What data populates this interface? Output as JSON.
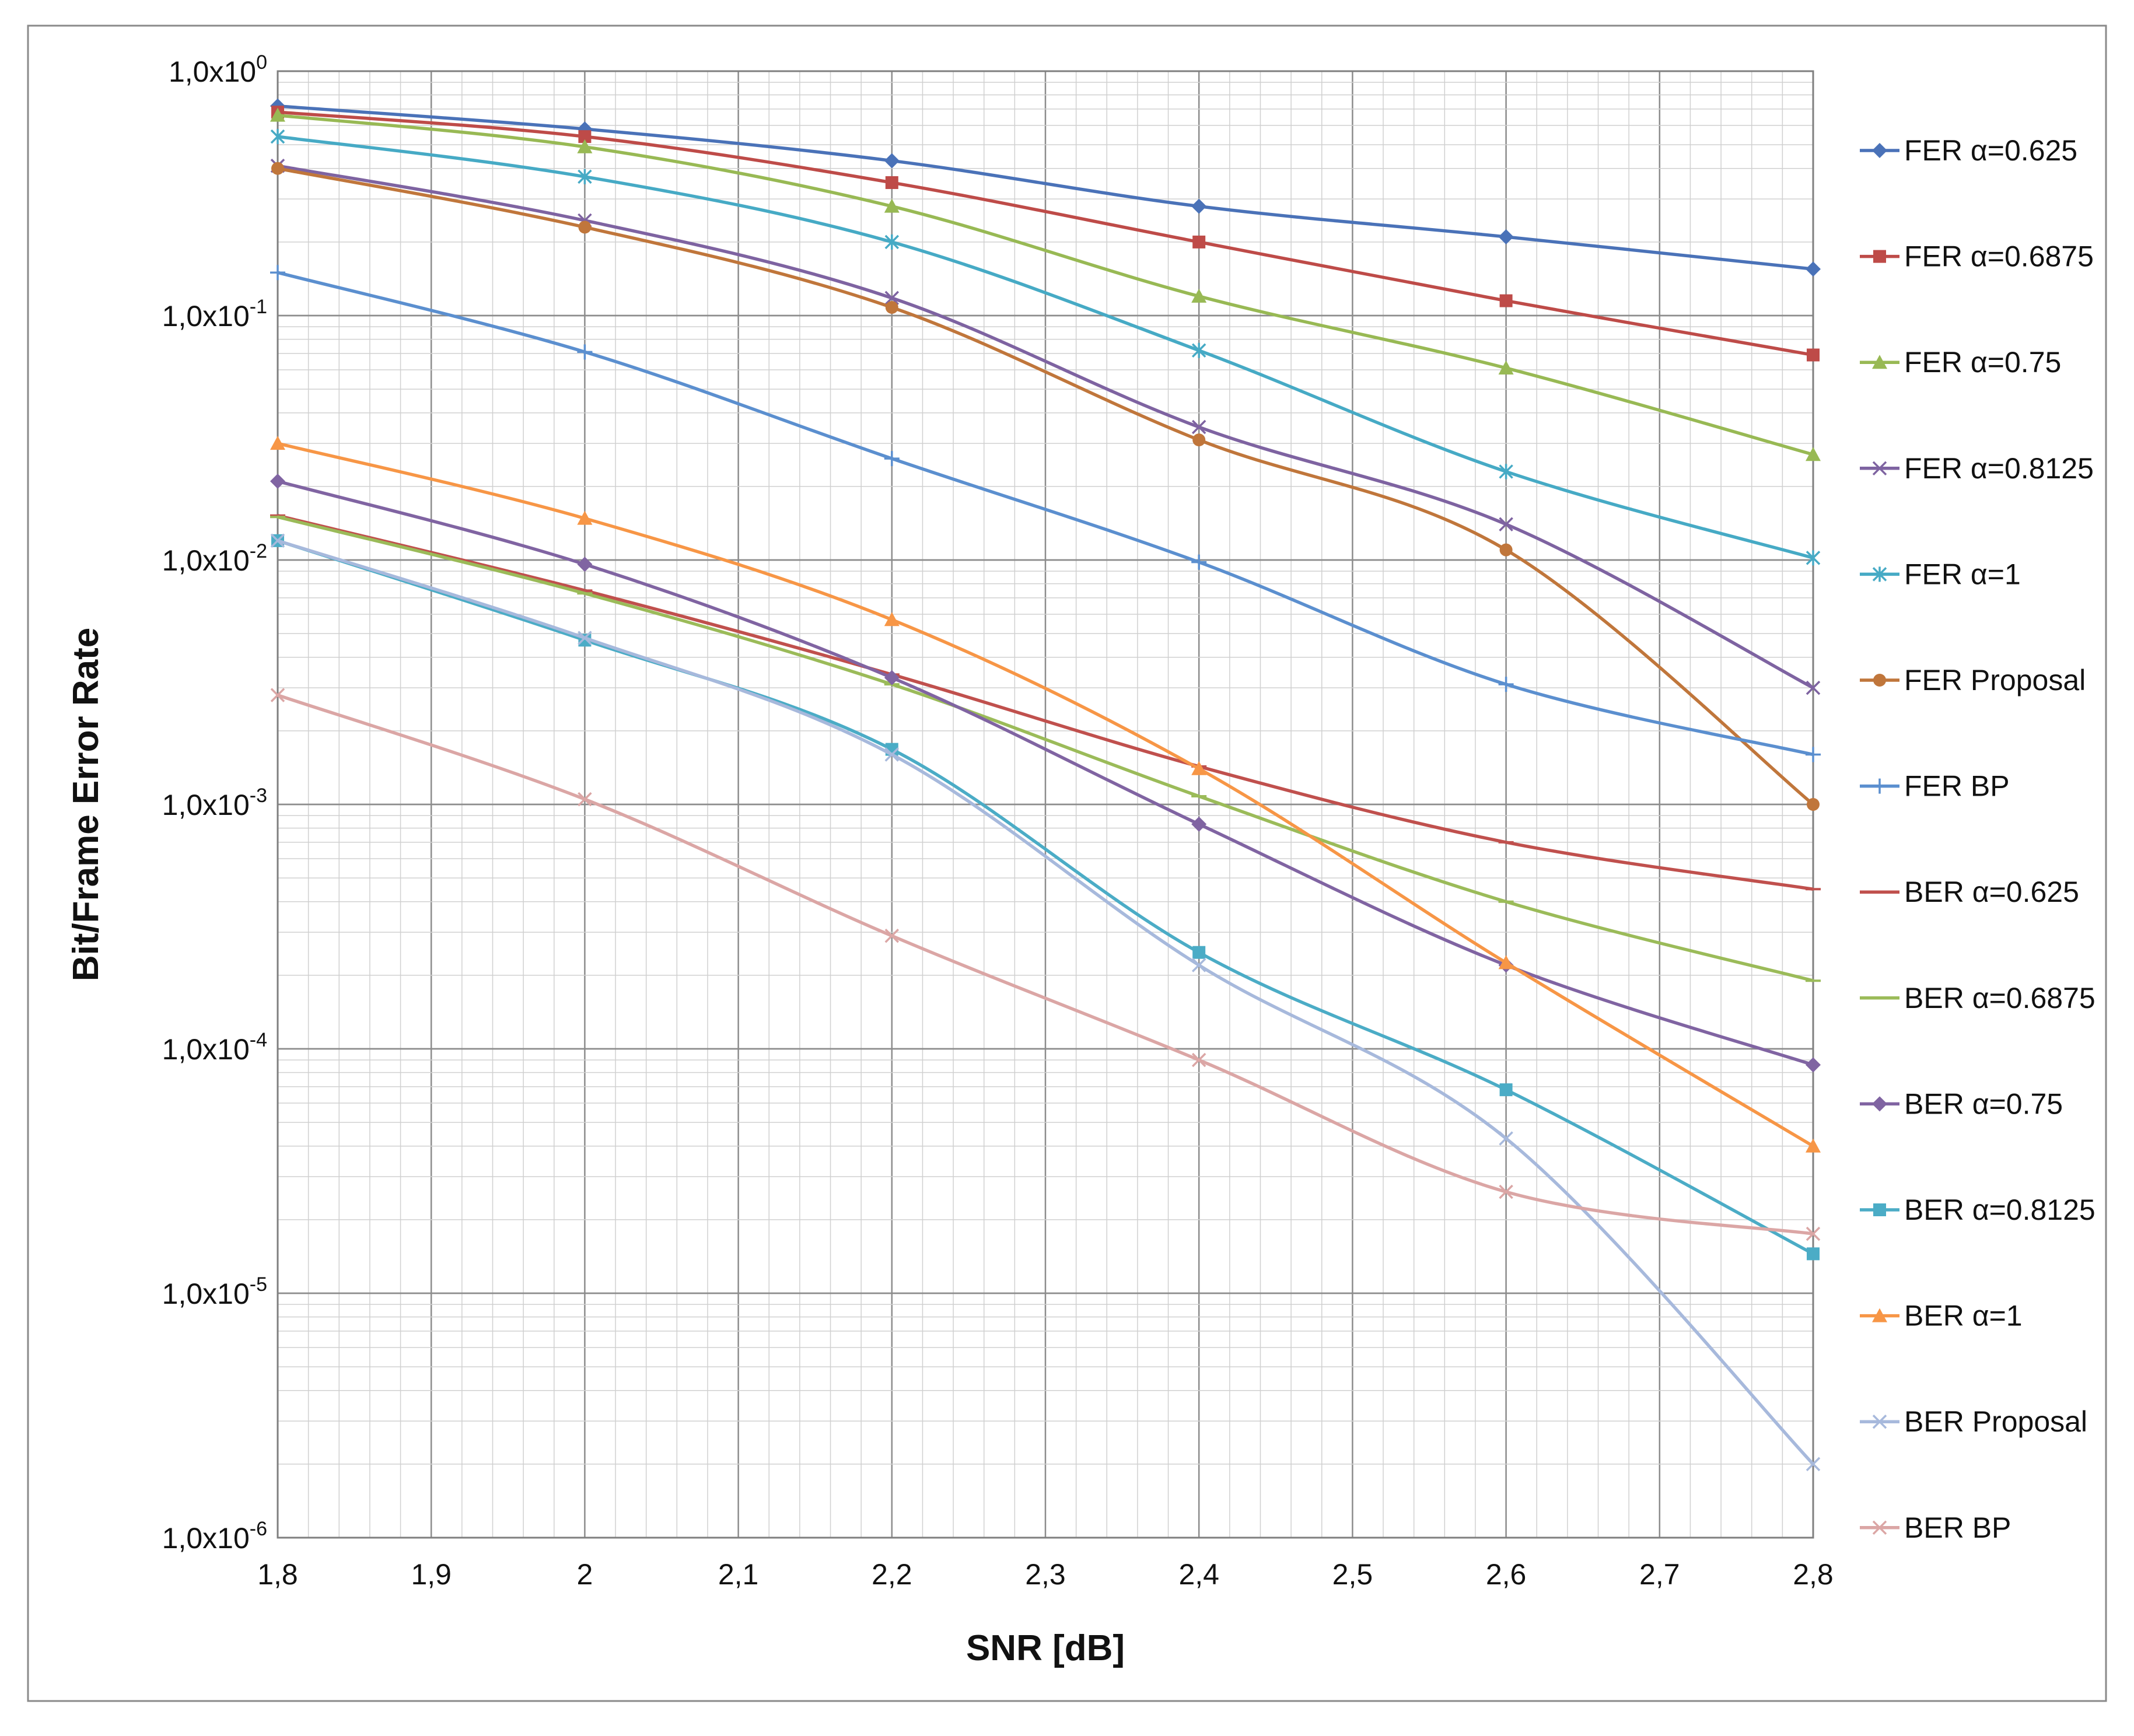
{
  "chart_data": {
    "type": "line",
    "title": "",
    "xlabel": "SNR [dB]",
    "ylabel": "Bit/Frame Error Rate",
    "xlim": [
      1.8,
      2.8
    ],
    "ylim": [
      1e-06,
      1
    ],
    "yscale": "log",
    "grid": true,
    "legend_position": "right",
    "x_ticks": [
      "1,8",
      "1,9",
      "2",
      "2,1",
      "2,2",
      "2,3",
      "2,4",
      "2,5",
      "2,6",
      "2,7",
      "2,8"
    ],
    "y_ticks": [
      {
        "mantissa": "1,0x10",
        "exp": "0"
      },
      {
        "mantissa": "1,0x10",
        "exp": "-1"
      },
      {
        "mantissa": "1,0x10",
        "exp": "-2"
      },
      {
        "mantissa": "1,0x10",
        "exp": "-3"
      },
      {
        "mantissa": "1,0x10",
        "exp": "-4"
      },
      {
        "mantissa": "1,0x10",
        "exp": "-5"
      },
      {
        "mantissa": "1,0x10",
        "exp": "-6"
      }
    ],
    "x": [
      1.8,
      2.0,
      2.2,
      2.4,
      2.6,
      2.8
    ],
    "series": [
      {
        "name": "FER α=0.625",
        "color": "#4a72b8",
        "marker": "diamond",
        "values": [
          0.72,
          0.58,
          0.43,
          0.28,
          0.21,
          0.155
        ]
      },
      {
        "name": "FER α=0.6875",
        "color": "#be4b48",
        "marker": "square",
        "values": [
          0.68,
          0.54,
          0.35,
          0.2,
          0.115,
          0.069
        ]
      },
      {
        "name": "FER α=0.75",
        "color": "#98b954",
        "marker": "triangle",
        "values": [
          0.66,
          0.49,
          0.28,
          0.12,
          0.061,
          0.027
        ]
      },
      {
        "name": "FER α=0.8125",
        "color": "#7e63a1",
        "marker": "x",
        "values": [
          0.41,
          0.245,
          0.118,
          0.035,
          0.014,
          0.003
        ]
      },
      {
        "name": "FER α=1",
        "color": "#46aac5",
        "marker": "star",
        "values": [
          0.54,
          0.37,
          0.2,
          0.072,
          0.023,
          0.0102
        ]
      },
      {
        "name": "FER Proposal",
        "color": "#c0763b",
        "marker": "circle",
        "values": [
          0.4,
          0.23,
          0.108,
          0.031,
          0.011,
          0.001
        ]
      },
      {
        "name": "FER BP",
        "color": "#5b8fcf",
        "marker": "plus",
        "values": [
          0.15,
          0.071,
          0.026,
          0.0098,
          0.0031,
          0.0016
        ]
      },
      {
        "name": "BER α=0.625",
        "color": "#c0504d",
        "marker": "dash",
        "values": [
          0.0152,
          0.0075,
          0.0034,
          0.00143,
          0.0007,
          0.00045
        ]
      },
      {
        "name": "BER α=0.6875",
        "color": "#9bbb59",
        "marker": "dash",
        "values": [
          0.015,
          0.0073,
          0.0031,
          0.00108,
          0.0004,
          0.00019
        ]
      },
      {
        "name": "BER α=0.75",
        "color": "#8064a2",
        "marker": "diamond",
        "values": [
          0.021,
          0.0096,
          0.0033,
          0.00083,
          0.00022,
          8.6e-05
        ]
      },
      {
        "name": "BER α=0.8125",
        "color": "#4bacc6",
        "marker": "square",
        "values": [
          0.012,
          0.0047,
          0.00168,
          0.000248,
          6.8e-05,
          1.45e-05
        ]
      },
      {
        "name": "BER α=1",
        "color": "#f79646",
        "marker": "triangle",
        "values": [
          0.03,
          0.0148,
          0.0057,
          0.0014,
          0.000225,
          4e-05
        ]
      },
      {
        "name": "BER Proposal",
        "color": "#a7b9dc",
        "marker": "x",
        "values": [
          0.012,
          0.0048,
          0.0016,
          0.00022,
          4.3e-05,
          2e-06
        ]
      },
      {
        "name": "BER BP",
        "color": "#dba6a5",
        "marker": "x",
        "values": [
          0.0028,
          0.00105,
          0.00029,
          9e-05,
          2.6e-05,
          1.75e-05
        ]
      }
    ]
  }
}
